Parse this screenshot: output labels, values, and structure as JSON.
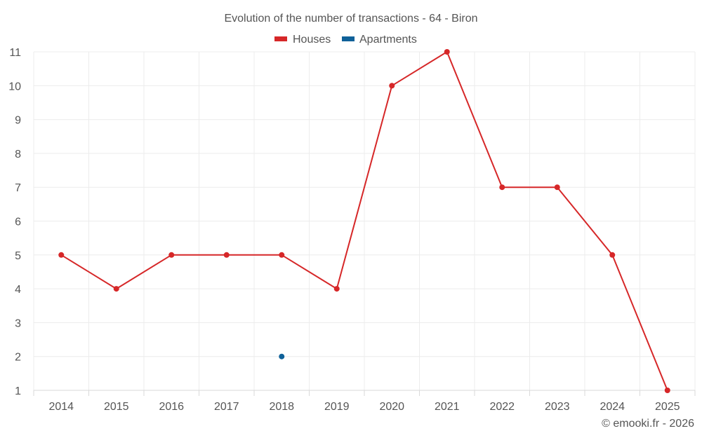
{
  "chart_data": {
    "type": "line",
    "title": "Evolution of the number of transactions - 64 - Biron",
    "categories": [
      "2014",
      "2015",
      "2016",
      "2017",
      "2018",
      "2019",
      "2020",
      "2021",
      "2022",
      "2023",
      "2024",
      "2025"
    ],
    "series": [
      {
        "name": "Houses",
        "color": "#d62728",
        "values": [
          5,
          4,
          5,
          5,
          5,
          4,
          10,
          11,
          7,
          7,
          5,
          1
        ]
      },
      {
        "name": "Apartments",
        "color": "#0f6199",
        "values": [
          null,
          null,
          null,
          null,
          2,
          null,
          null,
          null,
          null,
          null,
          null,
          null
        ]
      }
    ],
    "y_ticks": [
      "1",
      "2",
      "3",
      "4",
      "5",
      "6",
      "7",
      "8",
      "9",
      "10",
      "11"
    ],
    "ylim": [
      1,
      11
    ],
    "xlabel": "",
    "ylabel": "",
    "grid": true,
    "legend_position": "top-center"
  },
  "credit": "© emooki.fr - 2026"
}
